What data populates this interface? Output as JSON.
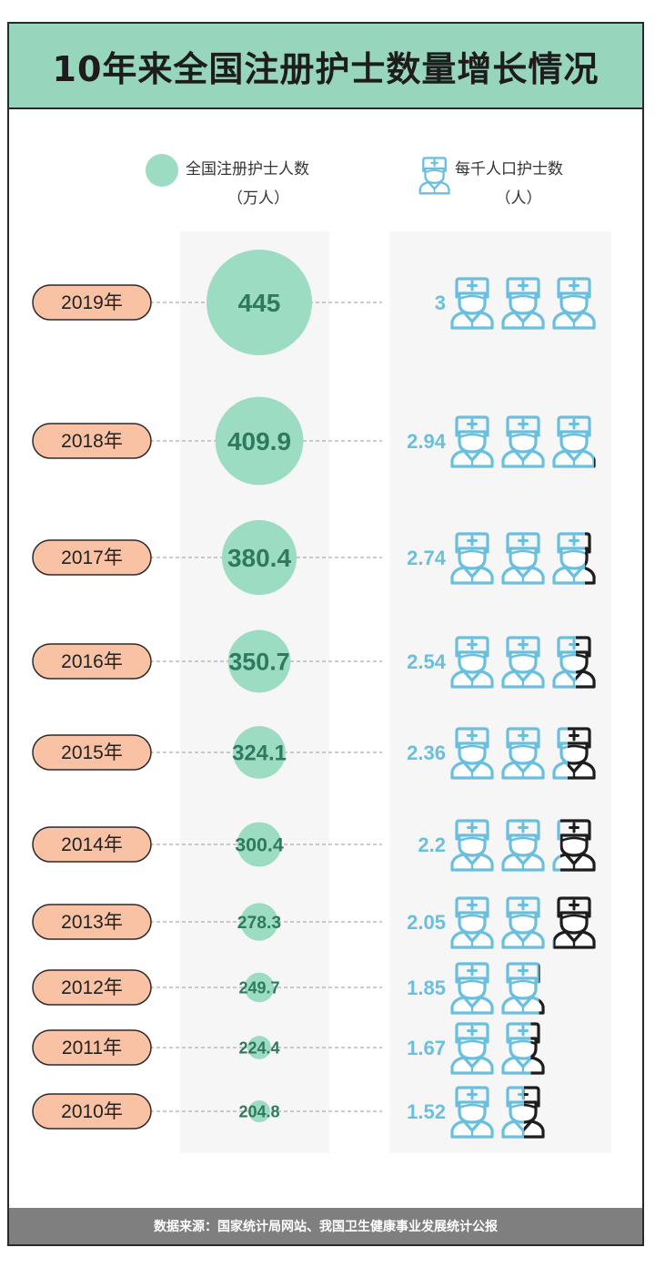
{
  "title": "10年来全国注册护士数量增长情况",
  "legend": {
    "nurses_label": "全国注册护士人数",
    "nurses_unit": "（万人）",
    "ratio_label": "每千人口护士数",
    "ratio_unit": "（人）"
  },
  "source": "数据来源：国家统计局网站、我国卫生健康事业发展统计公报",
  "colors": {
    "title_bg": "#97d6bd",
    "bubble": "#9cdcc2",
    "bubble_text": "#2f7a5f",
    "year_pill": "#f9c2a4",
    "icon": "#6bbfde",
    "footer_bg": "#7f7f7f"
  },
  "chart_data": {
    "type": "bubble-pictogram",
    "categories": [
      "2019年",
      "2018年",
      "2017年",
      "2016年",
      "2015年",
      "2014年",
      "2013年",
      "2012年",
      "2011年",
      "2010年"
    ],
    "series": [
      {
        "name": "全国注册护士人数",
        "unit": "（万人）",
        "values": [
          445,
          409.9,
          380.4,
          350.7,
          324.1,
          300.4,
          278.3,
          249.7,
          224.4,
          204.8
        ]
      },
      {
        "name": "每千人口护士数",
        "unit": "（人）",
        "values": [
          3,
          2.94,
          2.74,
          2.54,
          2.36,
          2.2,
          2.05,
          1.85,
          1.67,
          1.52
        ]
      }
    ]
  }
}
